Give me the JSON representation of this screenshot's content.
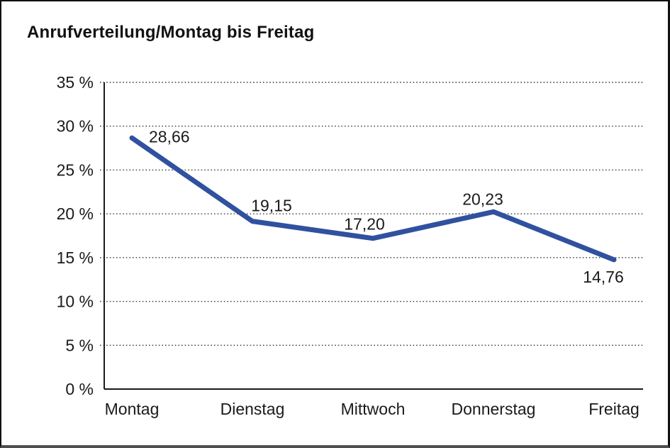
{
  "page": {
    "title": "Anrufverteilung/Montag bis Freitag"
  },
  "chart_data": {
    "type": "line",
    "title": "Anrufverteilung/Montag bis Freitag",
    "categories": [
      "Montag",
      "Dienstag",
      "Mittwoch",
      "Donnerstag",
      "Freitag"
    ],
    "values": [
      28.66,
      19.15,
      17.2,
      20.23,
      14.76
    ],
    "value_labels": [
      "28,66",
      "19,15",
      "17,20",
      "20,23",
      "14,76"
    ],
    "y_ticks": [
      {
        "value": 0,
        "label": "0 %"
      },
      {
        "value": 5,
        "label": "5 %"
      },
      {
        "value": 10,
        "label": "10 %"
      },
      {
        "value": 15,
        "label": "15 %"
      },
      {
        "value": 20,
        "label": "20 %"
      },
      {
        "value": 25,
        "label": "25 %"
      },
      {
        "value": 30,
        "label": "30 %"
      },
      {
        "value": 35,
        "label": "35 %"
      }
    ],
    "ylim": [
      0,
      35
    ],
    "y_step": 5,
    "xlabel": "",
    "ylabel": "",
    "legend": "none",
    "grid": "horizontal-dotted",
    "colors": {
      "series_line": "#30519F",
      "axis": "#1a1a1a",
      "gridline": "#3a3a3a",
      "text": "#1a1a1a",
      "background": "#ffffff"
    }
  }
}
